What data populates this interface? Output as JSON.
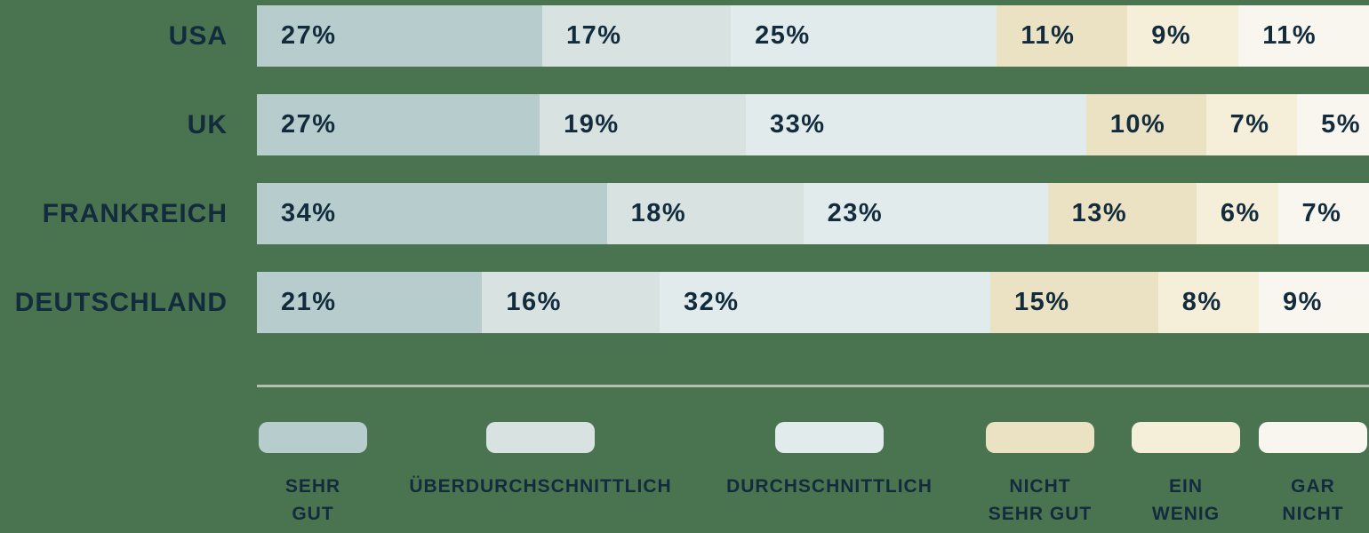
{
  "colors": {
    "background": "#4a7350",
    "text": "#122c3d",
    "divider": "#b4bfb4",
    "segments": [
      "#b7cccc",
      "#d7e2e1",
      "#e2ebeb",
      "#eae2c2",
      "#f5efd9",
      "#f8f6ee"
    ]
  },
  "chart_data": {
    "type": "bar",
    "variant": "horizontal-stacked",
    "unit": "%",
    "value_label_format": "{v}%",
    "categories": [
      "SEHR GUT",
      "ÜBERDURCHSCHNITTLICH",
      "DURCHSCHNITTLICH",
      "NICHT SEHR GUT",
      "EIN WENIG",
      "GAR NICHT"
    ],
    "rows": [
      {
        "label": "USA",
        "values": [
          27,
          17,
          25,
          11,
          9,
          11
        ]
      },
      {
        "label": "UK",
        "values": [
          27,
          19,
          33,
          10,
          7,
          5
        ]
      },
      {
        "label": "FRANKREICH",
        "values": [
          34,
          18,
          23,
          13,
          6,
          7
        ]
      },
      {
        "label": "DEUTSCHLAND",
        "values": [
          21,
          16,
          32,
          15,
          8,
          9
        ]
      }
    ],
    "xlim": [
      0,
      100
    ],
    "grid": false,
    "legend_position": "bottom"
  },
  "legend": {
    "items": [
      {
        "lines": [
          "SEHR",
          "GUT"
        ]
      },
      {
        "lines": [
          "ÜBERDURCHSCHNITTLICH"
        ]
      },
      {
        "lines": [
          "DURCHSCHNITTLICH"
        ]
      },
      {
        "lines": [
          "NICHT",
          "SEHR GUT"
        ]
      },
      {
        "lines": [
          "EIN",
          "WENIG"
        ]
      },
      {
        "lines": [
          "GAR",
          "NICHT"
        ]
      }
    ]
  }
}
